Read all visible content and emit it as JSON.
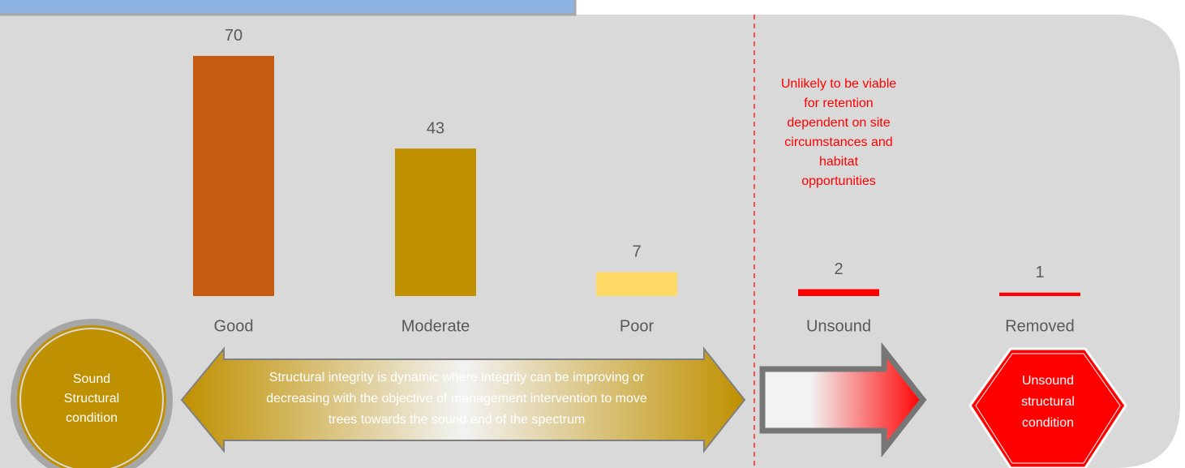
{
  "chart_data": {
    "type": "bar",
    "categories": [
      "Good",
      "Moderate",
      "Poor",
      "Unsound",
      "Removed"
    ],
    "values": [
      70,
      43,
      7,
      2,
      1
    ],
    "colors": [
      "#c55a11",
      "#bf9000",
      "#ffd966",
      "#ff0000",
      "#ff0000"
    ],
    "annotations": {
      "unlikely": [
        "Unlikely to be viable",
        "for retention",
        "dependent on site",
        "circumstances and",
        "habitat",
        "opportunities"
      ],
      "sound": [
        "Sound",
        "Structural",
        "condition"
      ],
      "dynamic": [
        "Structural integrity is dynamic where integrity can be improving or",
        "decreasing with the objective of management intervention to move",
        "trees towards the sound end of the spectrum"
      ],
      "unsound": [
        "Unsound",
        "structural",
        "condition"
      ]
    }
  }
}
